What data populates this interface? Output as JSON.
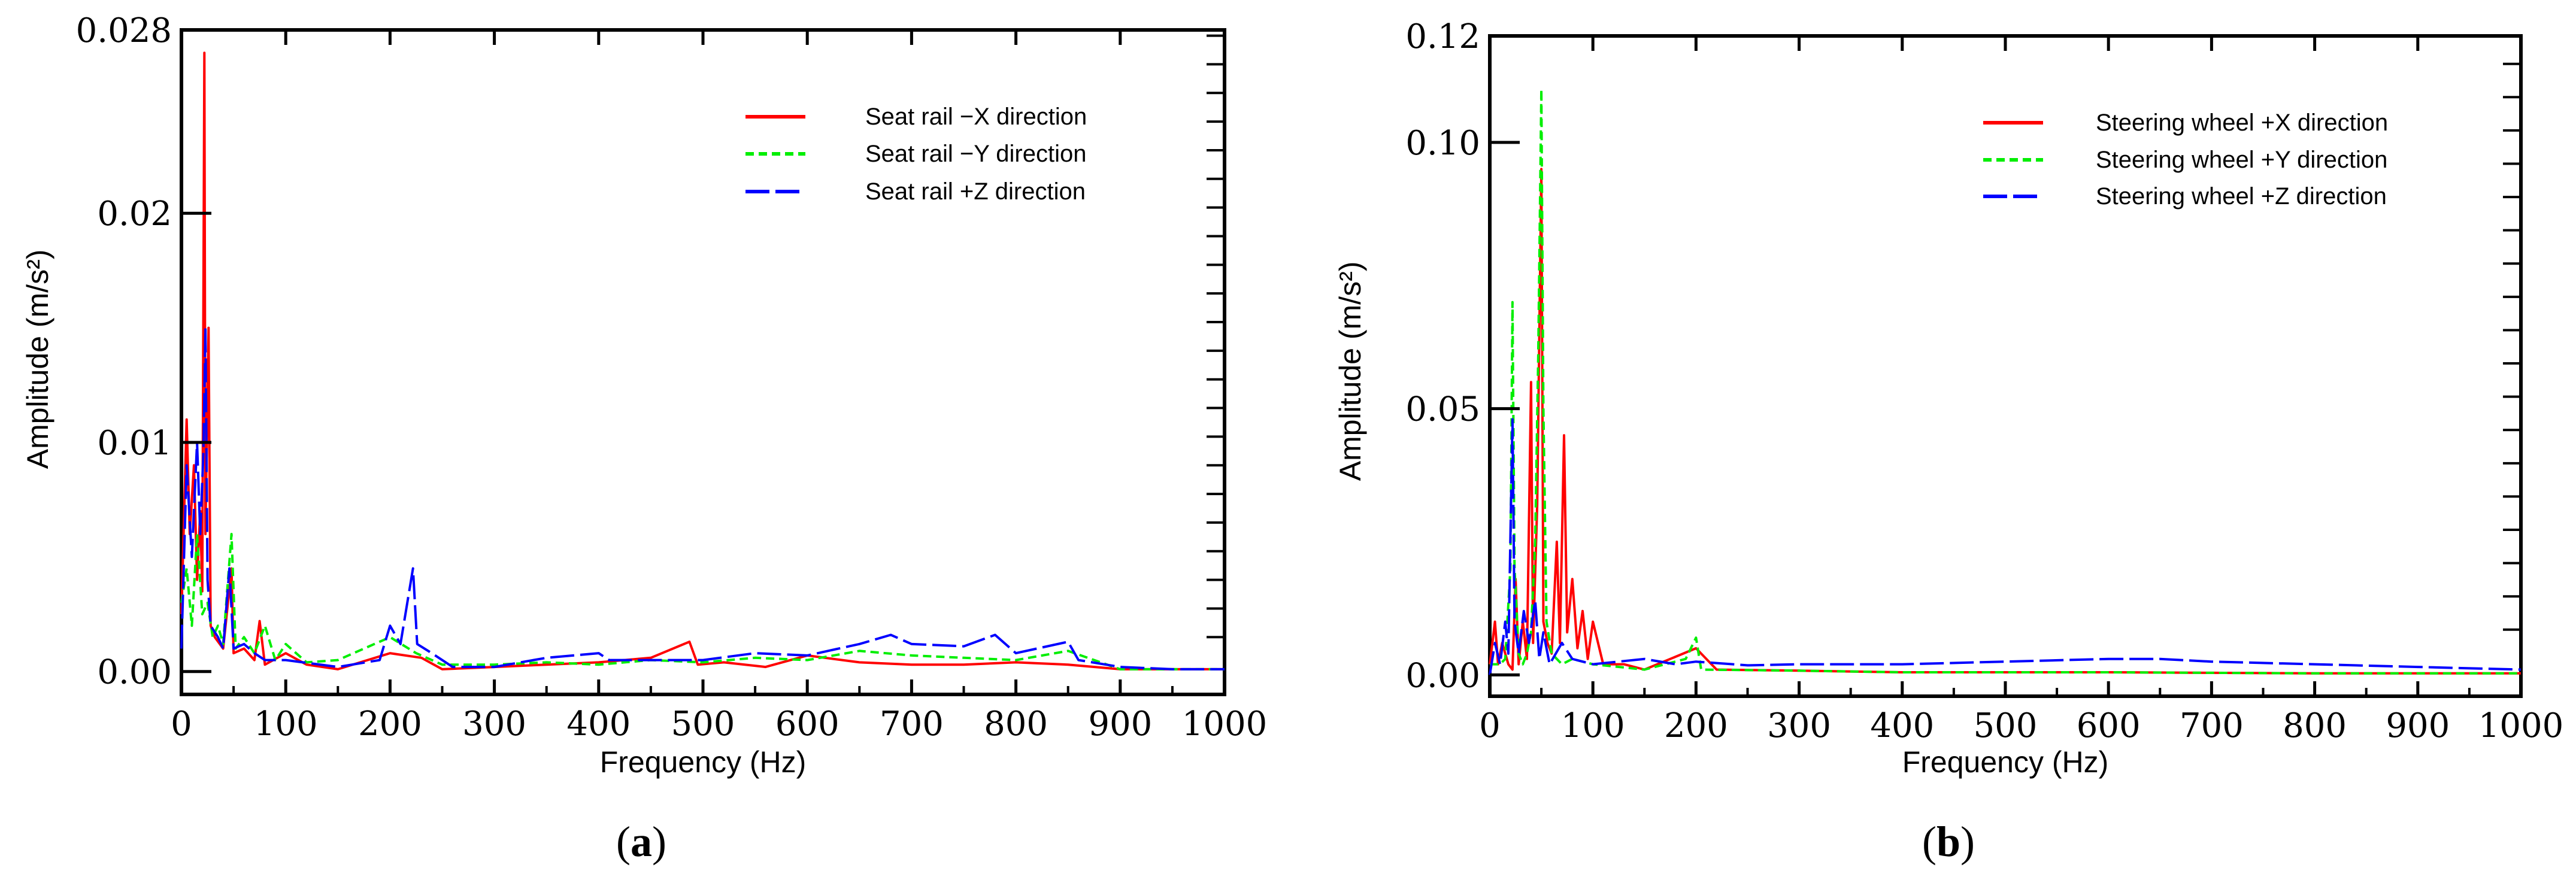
{
  "colors": {
    "x_series": "#ff0000",
    "y_series": "#00ee00",
    "z_series": "#0000ff",
    "axis": "#000000"
  },
  "chart_data": [
    {
      "panel": "(a)",
      "panel_letter": "a",
      "type": "line",
      "xlabel": "Frequency (Hz)",
      "ylabel": "Amplitude (m/s²)",
      "xlim": [
        0,
        1000
      ],
      "ylim": [
        -0.001,
        0.028
      ],
      "xticks": [
        0,
        100,
        200,
        300,
        400,
        500,
        600,
        700,
        800,
        900,
        1000
      ],
      "xtick_labels": [
        "0",
        "100",
        "200",
        "300",
        "400",
        "500",
        "600",
        "700",
        "800",
        "900",
        "1000"
      ],
      "yticks": [
        0.0,
        0.01,
        0.02,
        0.028
      ],
      "ytick_labels": [
        "0.00",
        "0.01",
        "0.02",
        "0.028"
      ],
      "legend": {
        "position": "top-right",
        "entries": [
          "Seat rail −X direction",
          "Seat rail −Y direction",
          "Seat rail +Z direction"
        ]
      },
      "series": [
        {
          "name": "Seat rail −X direction",
          "style": "solid",
          "color": "#ff0000",
          "points": [
            [
              0,
              0.0025
            ],
            [
              5,
              0.011
            ],
            [
              8,
              0.006
            ],
            [
              12,
              0.009
            ],
            [
              15,
              0.004
            ],
            [
              18,
              0.007
            ],
            [
              20,
              0.0035
            ],
            [
              22,
              0.027
            ],
            [
              23,
              0.006
            ],
            [
              26,
              0.015
            ],
            [
              28,
              0.002
            ],
            [
              32,
              0.0015
            ],
            [
              40,
              0.001
            ],
            [
              48,
              0.0045
            ],
            [
              50,
              0.0008
            ],
            [
              60,
              0.001
            ],
            [
              70,
              0.0005
            ],
            [
              75,
              0.0022
            ],
            [
              80,
              0.0003
            ],
            [
              100,
              0.0008
            ],
            [
              120,
              0.0003
            ],
            [
              150,
              0.0001
            ],
            [
              200,
              0.0008
            ],
            [
              230,
              0.0006
            ],
            [
              250,
              0.0001
            ],
            [
              300,
              0.0002
            ],
            [
              350,
              0.0003
            ],
            [
              400,
              0.0004
            ],
            [
              450,
              0.0006
            ],
            [
              487,
              0.0013
            ],
            [
              495,
              0.0003
            ],
            [
              520,
              0.0004
            ],
            [
              560,
              0.0002
            ],
            [
              600,
              0.0007
            ],
            [
              650,
              0.0004
            ],
            [
              700,
              0.0003
            ],
            [
              750,
              0.0003
            ],
            [
              800,
              0.0004
            ],
            [
              850,
              0.0003
            ],
            [
              900,
              0.0001
            ],
            [
              950,
              0.0001
            ],
            [
              1000,
              0.0001
            ]
          ]
        },
        {
          "name": "Seat rail −Y direction",
          "style": "dashed",
          "color": "#00ee00",
          "points": [
            [
              0,
              0.003
            ],
            [
              5,
              0.0045
            ],
            [
              10,
              0.002
            ],
            [
              15,
              0.006
            ],
            [
              20,
              0.0025
            ],
            [
              25,
              0.003
            ],
            [
              30,
              0.0015
            ],
            [
              35,
              0.002
            ],
            [
              40,
              0.0012
            ],
            [
              48,
              0.006
            ],
            [
              52,
              0.001
            ],
            [
              60,
              0.0015
            ],
            [
              70,
              0.0008
            ],
            [
              80,
              0.002
            ],
            [
              90,
              0.0005
            ],
            [
              100,
              0.0012
            ],
            [
              120,
              0.0004
            ],
            [
              150,
              0.0005
            ],
            [
              200,
              0.0015
            ],
            [
              225,
              0.0008
            ],
            [
              250,
              0.0003
            ],
            [
              300,
              0.0003
            ],
            [
              350,
              0.0004
            ],
            [
              400,
              0.0003
            ],
            [
              450,
              0.0005
            ],
            [
              500,
              0.0004
            ],
            [
              550,
              0.0006
            ],
            [
              600,
              0.0005
            ],
            [
              650,
              0.0009
            ],
            [
              700,
              0.0007
            ],
            [
              750,
              0.0006
            ],
            [
              800,
              0.0005
            ],
            [
              850,
              0.0009
            ],
            [
              900,
              0.0001
            ],
            [
              950,
              0.0001
            ],
            [
              1000,
              0.0001
            ]
          ]
        },
        {
          "name": "Seat rail +Z direction",
          "style": "longdash",
          "color": "#0000ff",
          "points": [
            [
              0,
              0.001
            ],
            [
              5,
              0.009
            ],
            [
              10,
              0.005
            ],
            [
              15,
              0.01
            ],
            [
              18,
              0.006
            ],
            [
              21,
              0.0095
            ],
            [
              23,
              0.015
            ],
            [
              25,
              0.004
            ],
            [
              28,
              0.002
            ],
            [
              35,
              0.0015
            ],
            [
              40,
              0.001
            ],
            [
              46,
              0.0045
            ],
            [
              50,
              0.001
            ],
            [
              60,
              0.0012
            ],
            [
              70,
              0.0008
            ],
            [
              80,
              0.0005
            ],
            [
              100,
              0.0005
            ],
            [
              150,
              0.0002
            ],
            [
              190,
              0.0005
            ],
            [
              200,
              0.002
            ],
            [
              210,
              0.0012
            ],
            [
              222,
              0.0045
            ],
            [
              226,
              0.0012
            ],
            [
              240,
              0.0008
            ],
            [
              260,
              0.0002
            ],
            [
              300,
              0.0002
            ],
            [
              350,
              0.0006
            ],
            [
              400,
              0.0008
            ],
            [
              410,
              0.0005
            ],
            [
              450,
              0.0005
            ],
            [
              500,
              0.0005
            ],
            [
              550,
              0.0008
            ],
            [
              600,
              0.0007
            ],
            [
              650,
              0.0012
            ],
            [
              680,
              0.0016
            ],
            [
              700,
              0.0012
            ],
            [
              750,
              0.0011
            ],
            [
              780,
              0.0016
            ],
            [
              800,
              0.0008
            ],
            [
              850,
              0.0013
            ],
            [
              860,
              0.0005
            ],
            [
              900,
              0.0002
            ],
            [
              950,
              0.0001
            ],
            [
              1000,
              0.0001
            ]
          ]
        }
      ]
    },
    {
      "panel": "(b)",
      "panel_letter": "b",
      "type": "line",
      "xlabel": "Frequency (Hz)",
      "ylabel": "Amplitude (m/s²)",
      "xlim": [
        0,
        1000
      ],
      "ylim": [
        -0.004,
        0.12
      ],
      "xticks": [
        0,
        100,
        200,
        300,
        400,
        500,
        600,
        700,
        800,
        900,
        1000
      ],
      "xtick_labels": [
        "0",
        "100",
        "200",
        "300",
        "400",
        "500",
        "600",
        "700",
        "800",
        "900",
        "1000"
      ],
      "yticks": [
        0.0,
        0.05,
        0.1,
        0.12
      ],
      "ytick_labels": [
        "0.00",
        "0.05",
        "0.10",
        "0.12"
      ],
      "legend": {
        "position": "top-right",
        "entries": [
          "Steering wheel +X direction",
          "Steering wheel +Y direction",
          "Steering wheel +Z direction"
        ]
      },
      "series": [
        {
          "name": "Steering wheel +X direction",
          "style": "solid",
          "color": "#ff0000",
          "points": [
            [
              0,
              0.002
            ],
            [
              5,
              0.01
            ],
            [
              8,
              0.002
            ],
            [
              12,
              0.006
            ],
            [
              18,
              0.002
            ],
            [
              22,
              0.001
            ],
            [
              25,
              0.018
            ],
            [
              28,
              0.002
            ],
            [
              32,
              0.01
            ],
            [
              36,
              0.003
            ],
            [
              40,
              0.055
            ],
            [
              42,
              0.006
            ],
            [
              46,
              0.032
            ],
            [
              50,
              0.095
            ],
            [
              52,
              0.01
            ],
            [
              56,
              0.006
            ],
            [
              60,
              0.004
            ],
            [
              65,
              0.025
            ],
            [
              68,
              0.006
            ],
            [
              72,
              0.045
            ],
            [
              75,
              0.008
            ],
            [
              80,
              0.018
            ],
            [
              85,
              0.005
            ],
            [
              90,
              0.012
            ],
            [
              95,
              0.003
            ],
            [
              100,
              0.01
            ],
            [
              110,
              0.002
            ],
            [
              130,
              0.002
            ],
            [
              150,
              0.001
            ],
            [
              200,
              0.005
            ],
            [
              220,
              0.001
            ],
            [
              300,
              0.0008
            ],
            [
              400,
              0.0005
            ],
            [
              500,
              0.0005
            ],
            [
              600,
              0.0005
            ],
            [
              700,
              0.0004
            ],
            [
              800,
              0.0003
            ],
            [
              900,
              0.0003
            ],
            [
              1000,
              0.0003
            ]
          ]
        },
        {
          "name": "Steering wheel +Y direction",
          "style": "dashed",
          "color": "#00ee00",
          "points": [
            [
              0,
              0.002
            ],
            [
              10,
              0.002
            ],
            [
              15,
              0.003
            ],
            [
              20,
              0.02
            ],
            [
              22,
              0.07
            ],
            [
              24,
              0.02
            ],
            [
              28,
              0.004
            ],
            [
              32,
              0.002
            ],
            [
              36,
              0.004
            ],
            [
              40,
              0.008
            ],
            [
              44,
              0.025
            ],
            [
              47,
              0.06
            ],
            [
              50,
              0.11
            ],
            [
              52,
              0.05
            ],
            [
              55,
              0.01
            ],
            [
              60,
              0.004
            ],
            [
              70,
              0.002
            ],
            [
              80,
              0.003
            ],
            [
              100,
              0.002
            ],
            [
              150,
              0.001
            ],
            [
              190,
              0.003
            ],
            [
              200,
              0.007
            ],
            [
              205,
              0.001
            ],
            [
              300,
              0.0008
            ],
            [
              400,
              0.0005
            ],
            [
              500,
              0.0005
            ],
            [
              600,
              0.0005
            ],
            [
              700,
              0.0004
            ],
            [
              800,
              0.0003
            ],
            [
              900,
              0.0003
            ],
            [
              1000,
              0.0003
            ]
          ]
        },
        {
          "name": "Steering wheel +Z direction",
          "style": "longdash",
          "color": "#0000ff",
          "points": [
            [
              0,
              0.0
            ],
            [
              5,
              0.006
            ],
            [
              10,
              0.002
            ],
            [
              15,
              0.01
            ],
            [
              18,
              0.004
            ],
            [
              22,
              0.048
            ],
            [
              24,
              0.01
            ],
            [
              28,
              0.004
            ],
            [
              33,
              0.012
            ],
            [
              38,
              0.006
            ],
            [
              44,
              0.014
            ],
            [
              48,
              0.003
            ],
            [
              52,
              0.008
            ],
            [
              58,
              0.002
            ],
            [
              70,
              0.006
            ],
            [
              80,
              0.003
            ],
            [
              100,
              0.002
            ],
            [
              150,
              0.003
            ],
            [
              180,
              0.002
            ],
            [
              200,
              0.0025
            ],
            [
              250,
              0.0018
            ],
            [
              300,
              0.002
            ],
            [
              400,
              0.002
            ],
            [
              500,
              0.0025
            ],
            [
              600,
              0.003
            ],
            [
              650,
              0.003
            ],
            [
              700,
              0.0025
            ],
            [
              800,
              0.002
            ],
            [
              900,
              0.0015
            ],
            [
              1000,
              0.001
            ]
          ]
        }
      ]
    }
  ]
}
